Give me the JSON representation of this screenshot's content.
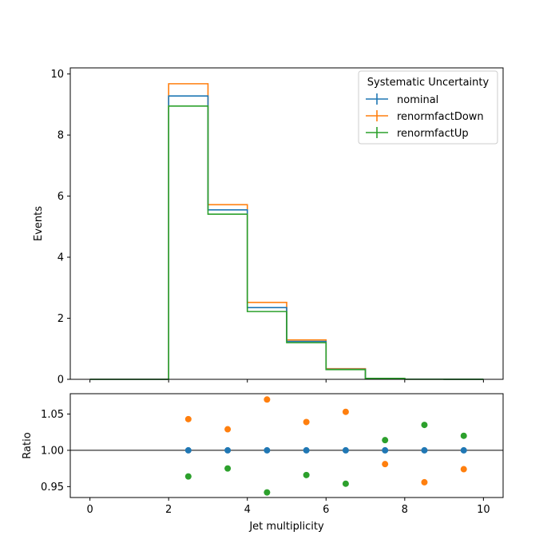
{
  "chart_data": [
    {
      "type": "line",
      "drawstyle": "step-histogram",
      "xlabel": "",
      "ylabel": "Events",
      "xlim": [
        -0.5,
        10.5
      ],
      "ylim": [
        0,
        10.2
      ],
      "bin_edges": [
        0,
        1,
        2,
        3,
        4,
        5,
        6,
        7,
        8,
        9,
        10
      ],
      "x_ticks": [
        0,
        2,
        4,
        6,
        8,
        10
      ],
      "y_ticks": [
        "0",
        "2",
        "4",
        "6",
        "8",
        "10"
      ],
      "legend": {
        "title": "Systematic Uncertainty",
        "position": "top-right"
      },
      "series": [
        {
          "name": "nominal",
          "color": "#1f77b4",
          "values": [
            0,
            0,
            9.28,
            5.55,
            2.35,
            1.24,
            0.33,
            0.03,
            0.003,
            0.001
          ]
        },
        {
          "name": "renormfactDown",
          "color": "#ff7f0e",
          "values": [
            0,
            0,
            9.68,
            5.72,
            2.52,
            1.29,
            0.35,
            0.03,
            0.003,
            0.001
          ]
        },
        {
          "name": "renormfactUp",
          "color": "#2ca02c",
          "values": [
            0,
            0,
            8.95,
            5.41,
            2.22,
            1.2,
            0.32,
            0.03,
            0.003,
            0.001
          ]
        }
      ]
    },
    {
      "type": "scatter",
      "xlabel": "Jet multiplicity",
      "ylabel": "Ratio",
      "xlim": [
        -0.5,
        10.5
      ],
      "ylim": [
        0.935,
        1.078
      ],
      "x_ticks": [
        "0",
        "2",
        "4",
        "6",
        "8",
        "10"
      ],
      "y_ticks": [
        "0.95",
        "1.00",
        "1.05"
      ],
      "reference_line": 1.0,
      "x": [
        2.5,
        3.5,
        4.5,
        5.5,
        6.5,
        7.5,
        8.5,
        9.5
      ],
      "series": [
        {
          "name": "nominal",
          "color": "#1f77b4",
          "values": [
            1.0,
            1.0,
            1.0,
            1.0,
            1.0,
            1.0,
            1.0,
            1.0
          ]
        },
        {
          "name": "renormfactDown",
          "color": "#ff7f0e",
          "values": [
            1.043,
            1.029,
            1.07,
            1.039,
            1.053,
            0.981,
            0.956,
            0.974
          ]
        },
        {
          "name": "renormfactUp",
          "color": "#2ca02c",
          "values": [
            0.964,
            0.975,
            0.942,
            0.966,
            0.954,
            1.014,
            1.035,
            1.02
          ]
        }
      ]
    }
  ]
}
